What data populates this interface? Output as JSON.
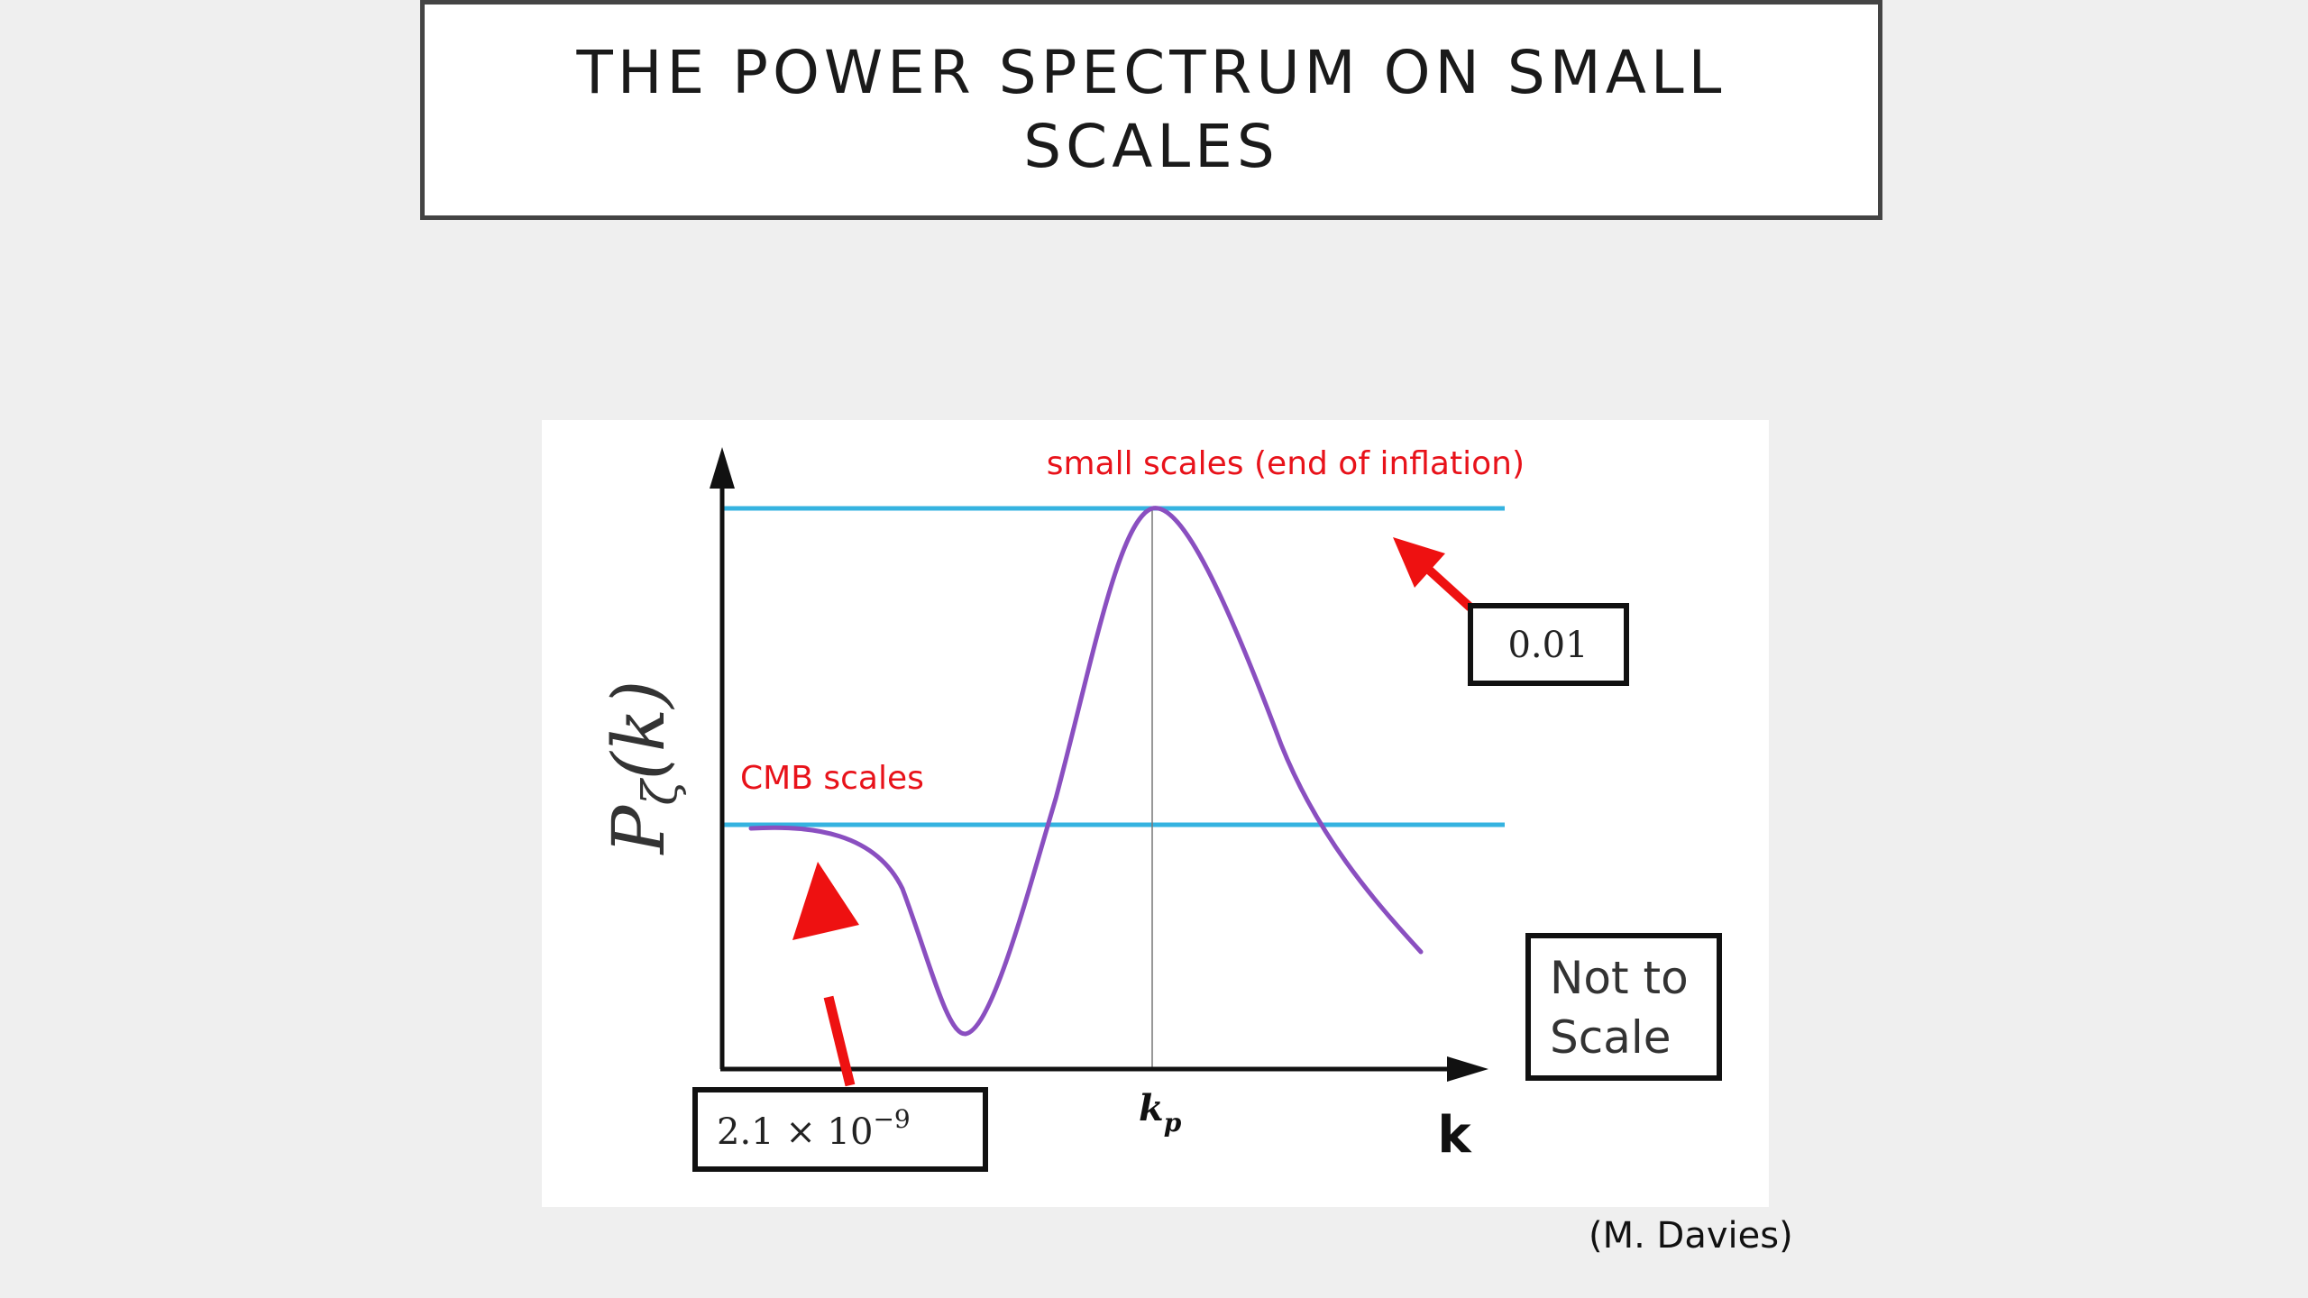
{
  "slide": {
    "title_line1": "THE POWER SPECTRUM ON SMALL",
    "title_line2": "SCALES",
    "credit": "(M. Davies)"
  },
  "diagram": {
    "y_axis_label_main": "P",
    "y_axis_label_sub": "ζ",
    "y_axis_label_arg": "(k)",
    "x_axis_label": "k",
    "peak_tick_main": "k",
    "peak_tick_sub": "p",
    "label_small_scales": "small scales (end of inflation)",
    "label_cmb_scales": "CMB scales",
    "box_peak_value": "0.01",
    "box_cmb_value": "2.1 × 10",
    "box_cmb_exponent": "−9",
    "box_note_line1": "Not to",
    "box_note_line2": "Scale",
    "colors": {
      "curve": "#8a4fc0",
      "reference_lines": "#35b3e0",
      "annotation_text": "#e8121a",
      "arrows": "#ee1111"
    }
  }
}
